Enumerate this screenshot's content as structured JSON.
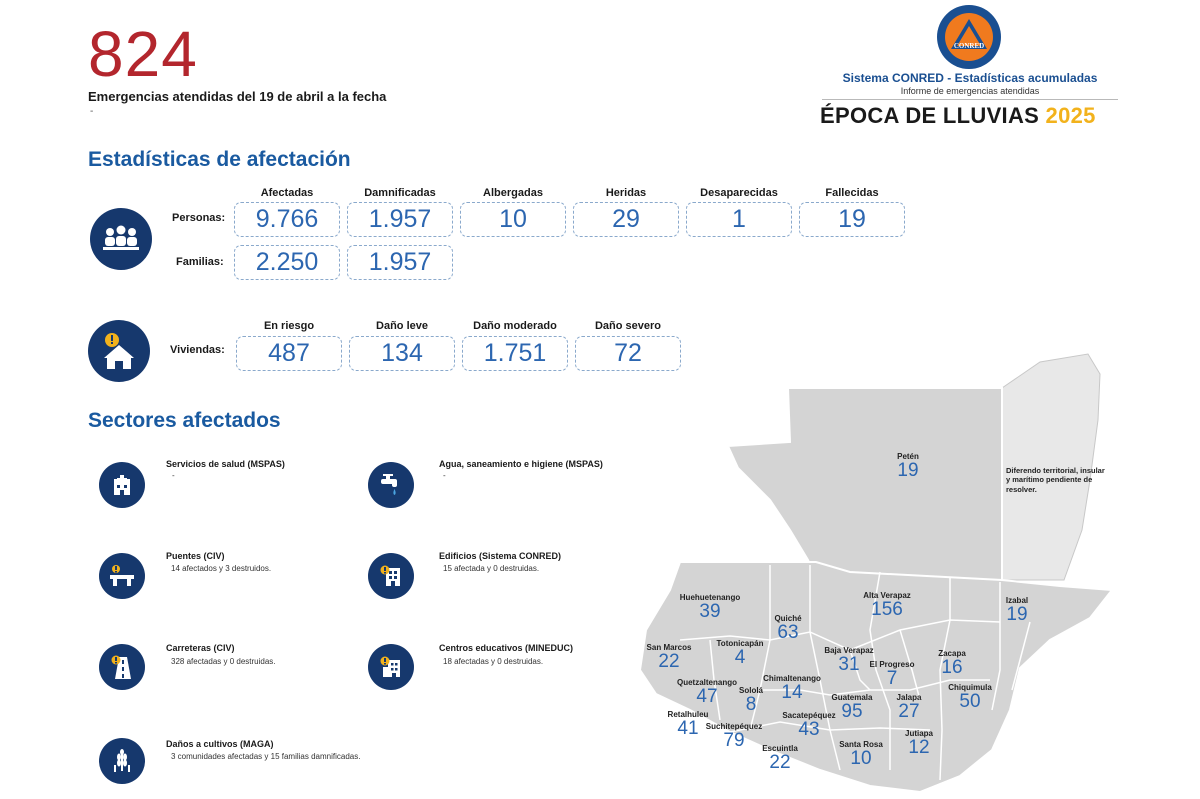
{
  "header": {
    "total_emergencies": "824",
    "subtitle": "Emergencias atendidas del 19 de abril a la fecha",
    "dash": "-",
    "brand": "Sistema CONRED - Estadísticas acumuladas",
    "brand_sub": "Informe de emergencias atendidas",
    "season": "ÉPOCA DE LLUVIAS",
    "year": "2025",
    "logo_text": "CONRED"
  },
  "stats": {
    "title": "Estadísticas de afectación",
    "personas_label": "Personas:",
    "familias_label": "Familias:",
    "viviendas_label": "Viviendas:",
    "people_headers": [
      "Afectadas",
      "Damnificadas",
      "Albergadas",
      "Heridas",
      "Desaparecidas",
      "Fallecidas"
    ],
    "personas": [
      "9.766",
      "1.957",
      "10",
      "29",
      "1",
      "19"
    ],
    "familias": [
      "2.250",
      "1.957"
    ],
    "housing_headers": [
      "En riesgo",
      "Daño leve",
      "Daño moderado",
      "Daño severo"
    ],
    "viviendas": [
      "487",
      "134",
      "1.751",
      "72"
    ]
  },
  "sectors": {
    "title": "Sectores afectados",
    "items": [
      {
        "title": "Servicios de salud (MSPAS)",
        "desc": "-",
        "icon": "hospital-icon"
      },
      {
        "title": "Agua, saneamiento e higiene (MSPAS)",
        "desc": "-",
        "icon": "water-tap-icon"
      },
      {
        "title": "Puentes (CIV)",
        "desc": "14 afectados y 3 destruidos.",
        "icon": "bridge-icon"
      },
      {
        "title": "Edificios (Sistema CONRED)",
        "desc": "15 afectada y 0 destruidas.",
        "icon": "building-icon"
      },
      {
        "title": "Carreteras (CIV)",
        "desc": "328 afectadas y 0 destruidas.",
        "icon": "road-icon"
      },
      {
        "title": "Centros educativos (MINEDUC)",
        "desc": "18 afectadas y 0 destruidas.",
        "icon": "school-icon"
      },
      {
        "title": "Daños a cultivos (MAGA)",
        "desc": "3 comunidades afectadas y 15 familias damnificadas.",
        "icon": "crops-icon"
      }
    ]
  },
  "map": {
    "diferendo": "Diferendo territorial, insular y marítimo pendiente de resolver.",
    "departments": [
      {
        "name": "Petén",
        "value": "19"
      },
      {
        "name": "Huehuetenango",
        "value": "39"
      },
      {
        "name": "Alta Verapaz",
        "value": "156"
      },
      {
        "name": "Izabal",
        "value": "19"
      },
      {
        "name": "Quiché",
        "value": "63"
      },
      {
        "name": "San Marcos",
        "value": "22"
      },
      {
        "name": "Totonicapán",
        "value": "4"
      },
      {
        "name": "Baja Verapaz",
        "value": "31"
      },
      {
        "name": "El Progreso",
        "value": "7"
      },
      {
        "name": "Zacapa",
        "value": "16"
      },
      {
        "name": "Quetzaltenango",
        "value": "47"
      },
      {
        "name": "Sololá",
        "value": "8"
      },
      {
        "name": "Chimaltenango",
        "value": "14"
      },
      {
        "name": "Guatemala",
        "value": "95"
      },
      {
        "name": "Jalapa",
        "value": "27"
      },
      {
        "name": "Chiquimula",
        "value": "50"
      },
      {
        "name": "Retalhuleu",
        "value": "41"
      },
      {
        "name": "Suchitepéquez",
        "value": "79"
      },
      {
        "name": "Sacatepéquez",
        "value": "43"
      },
      {
        "name": "Jutiapa",
        "value": "12"
      },
      {
        "name": "Escuintla",
        "value": "22"
      },
      {
        "name": "Santa Rosa",
        "value": "10"
      }
    ]
  },
  "colors": {
    "accent_red": "#b3262d",
    "title_blue": "#1a5aa0",
    "icon_navy": "#16386d",
    "value_blue": "#2c66b0",
    "year_gold": "#f2b21c",
    "map_gray": "#d4d4d4",
    "disputed_gray": "#e8e8e8"
  }
}
